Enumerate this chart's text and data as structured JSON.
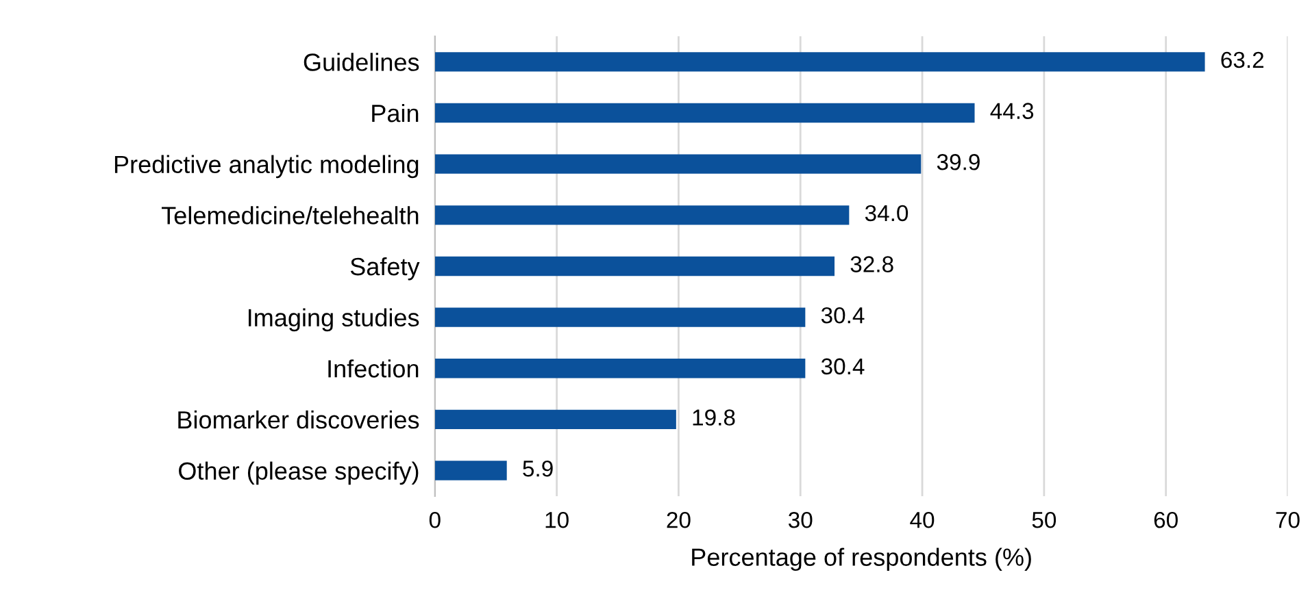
{
  "chart_data": {
    "type": "bar",
    "orientation": "horizontal",
    "xlabel": "Percentage of respondents (%)",
    "categories": [
      "Guidelines",
      "Pain",
      "Predictive analytic modeling",
      "Telemedicine/telehealth",
      "Safety",
      "Imaging studies",
      "Infection",
      "Biomarker discoveries",
      "Other (please specify)"
    ],
    "values": [
      63.2,
      44.3,
      39.9,
      34.0,
      32.8,
      30.4,
      30.4,
      19.8,
      5.9
    ],
    "value_labels": [
      "63.2",
      "44.3",
      "39.9",
      "34.0",
      "32.8",
      "30.4",
      "30.4",
      "19.8",
      "5.9"
    ],
    "color": "#0b519b",
    "xlim": [
      0,
      70
    ],
    "xticks": [
      0,
      10,
      20,
      30,
      40,
      50,
      60,
      70
    ],
    "grid": "x",
    "legend": false
  }
}
